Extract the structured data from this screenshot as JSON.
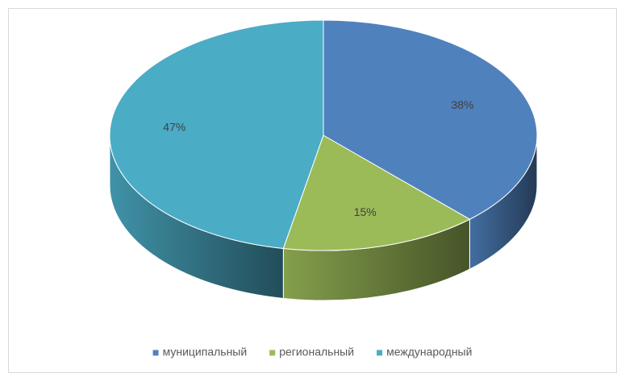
{
  "chart_data": {
    "type": "pie",
    "categories": [
      "муниципальный",
      "региональный",
      "международный"
    ],
    "values": [
      38,
      15,
      47
    ],
    "value_labels": [
      "38%",
      "15%",
      "47%"
    ],
    "colors": [
      "#4f81bd",
      "#9bbb59",
      "#4bacc6"
    ],
    "legend": "bottom"
  }
}
